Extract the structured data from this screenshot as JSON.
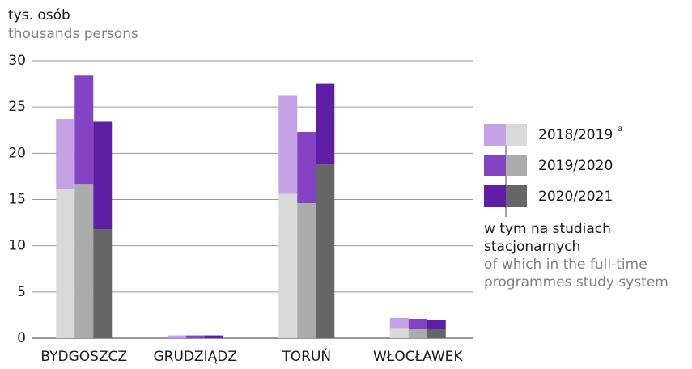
{
  "chart_data": {
    "type": "grouped-stacked-bar",
    "unit_label": "tys. osób",
    "unit_label_en": "thousands persons",
    "categories": [
      "BYDGOSZCZ",
      "GRUDZIĄDZ",
      "TORUŃ",
      "WŁOCŁAWEK"
    ],
    "series": [
      {
        "name": "2018/2019",
        "note": "a",
        "color": "#c3a3e6",
        "full_time_color": "#d9d9d9",
        "full_time": [
          16.1,
          0,
          15.6,
          1.1
        ],
        "other": [
          7.6,
          0.3,
          10.6,
          1.1
        ]
      },
      {
        "name": "2019/2020",
        "color": "#8443c2",
        "full_time_color": "#ababab",
        "full_time": [
          16.6,
          0,
          14.6,
          1.0
        ],
        "other": [
          11.8,
          0.3,
          7.7,
          1.1
        ]
      },
      {
        "name": "2020/2021",
        "color": "#5e1ea6",
        "full_time_color": "#666666",
        "full_time": [
          11.8,
          0,
          18.8,
          1.0
        ],
        "other": [
          11.6,
          0.3,
          8.7,
          1.0
        ]
      }
    ],
    "full_time_legend": [
      "w tym na studiach",
      "stacjonarnych"
    ],
    "full_time_legend_en": [
      "of which in the full-time",
      "programmes study system"
    ],
    "ylim": [
      0,
      30
    ],
    "yticks": [
      0,
      5,
      10,
      15,
      20,
      25,
      30
    ],
    "grid": true
  }
}
